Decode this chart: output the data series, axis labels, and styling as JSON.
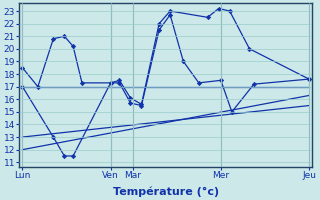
{
  "background_color": "#cce8e8",
  "grid_color": "#99cccc",
  "line_color": "#1133aa",
  "x_ticks_pos": [
    0,
    4,
    5,
    9,
    13
  ],
  "x_tick_labels": [
    "Lun",
    "Ven",
    "Mar",
    "Mer",
    "Jeu"
  ],
  "yticks": [
    11,
    12,
    13,
    14,
    15,
    16,
    17,
    18,
    19,
    20,
    21,
    22,
    23
  ],
  "ylim_min": 10.6,
  "ylim_max": 23.6,
  "xlim_min": -0.15,
  "xlim_max": 13.15,
  "xlabel": "Température (°c)",
  "xlabel_fontsize": 8,
  "tick_fontsize": 6.5,
  "line1_x": [
    0,
    0.7,
    1.4,
    1.9,
    2.3,
    2.7,
    4.0,
    4.4,
    4.9,
    5.4,
    6.2,
    6.7,
    8.4,
    8.9,
    9.4,
    10.3,
    13.0
  ],
  "line1_y": [
    18.5,
    17.0,
    20.8,
    21.0,
    20.2,
    17.3,
    17.3,
    17.5,
    16.1,
    15.6,
    22.0,
    23.0,
    22.5,
    23.2,
    23.0,
    20.0,
    17.6
  ],
  "line2_x": [
    0,
    1.4,
    1.9,
    2.3,
    4.0,
    4.4,
    4.9,
    5.4,
    6.2,
    6.7,
    7.3,
    8.0,
    9.0,
    9.5,
    10.5,
    13.0
  ],
  "line2_y": [
    17.0,
    13.0,
    11.5,
    11.5,
    17.3,
    17.3,
    15.7,
    15.5,
    21.5,
    22.7,
    19.0,
    17.3,
    17.5,
    15.0,
    17.2,
    17.6
  ],
  "line3_x": [
    0,
    13.0
  ],
  "line3_y": [
    17.0,
    17.0
  ],
  "line4_x": [
    0,
    13.0
  ],
  "line4_y": [
    13.0,
    15.5
  ],
  "line5_x": [
    0,
    13.0
  ],
  "line5_y": [
    12.0,
    16.3
  ]
}
